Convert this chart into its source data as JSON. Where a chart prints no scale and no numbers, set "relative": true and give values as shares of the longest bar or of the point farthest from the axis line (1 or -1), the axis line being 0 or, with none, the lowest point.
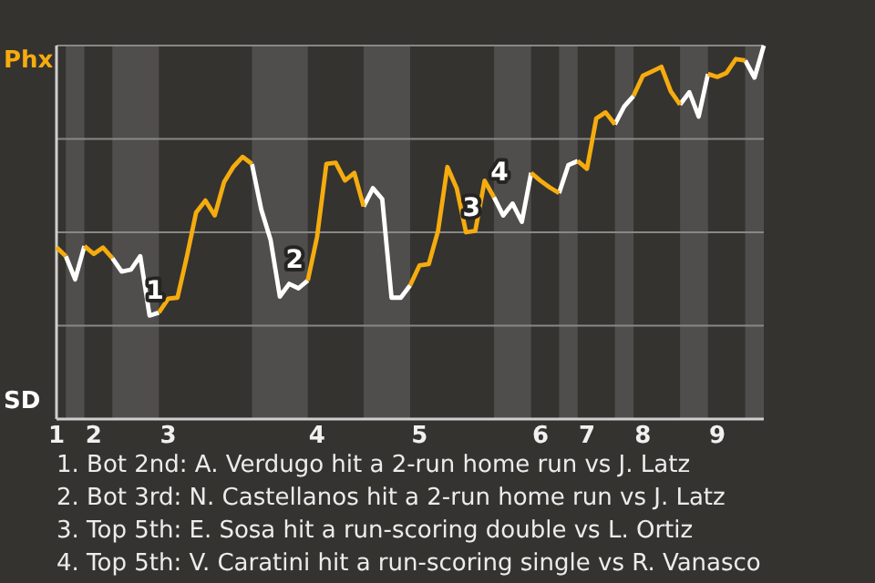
{
  "chart_data": {
    "type": "line",
    "relative": true,
    "categories": [
      "1",
      null,
      null,
      null,
      "2",
      null,
      null,
      null,
      null,
      null,
      null,
      null,
      "3",
      null,
      null,
      null,
      null,
      null,
      null,
      null,
      null,
      null,
      null,
      null,
      null,
      null,
      null,
      null,
      "4",
      null,
      null,
      null,
      null,
      null,
      null,
      null,
      null,
      null,
      null,
      "5",
      null,
      null,
      null,
      null,
      null,
      null,
      null,
      null,
      null,
      null,
      null,
      null,
      "6",
      null,
      null,
      null,
      null,
      "7",
      null,
      null,
      null,
      null,
      null,
      "8",
      null,
      null,
      null,
      null,
      null,
      null,
      null,
      "9",
      null,
      null,
      null,
      null,
      null
    ],
    "grid": "y",
    "line_style": "solid",
    "series": [
      {
        "name": "Phx",
        "color": "#f5ac0f",
        "values": [
          0.46,
          0.436,
          null,
          0.463,
          0.442,
          0.459,
          0.431,
          null,
          null,
          null,
          null,
          0.285,
          0.322,
          0.325,
          0.434,
          0.553,
          0.585,
          0.545,
          0.634,
          0.675,
          0.702,
          0.683,
          null,
          null,
          null,
          null,
          null,
          0.371,
          0.488,
          0.683,
          0.686,
          0.639,
          0.659,
          0.569,
          null,
          null,
          null,
          null,
          0.358,
          0.411,
          0.415,
          0.504,
          0.675,
          0.618,
          0.5,
          0.504,
          0.638,
          0.594,
          null,
          null,
          null,
          0.659,
          0.638,
          0.62,
          0.605,
          null,
          0.691,
          0.67,
          0.805,
          0.821,
          0.789,
          null,
          0.865,
          0.919,
          0.931,
          0.943,
          0.878,
          0.842,
          null,
          null,
          0.924,
          0.916,
          0.927,
          0.964,
          0.96,
          null,
          null
        ]
      },
      {
        "name": "SD",
        "color": "#ffffff",
        "values": [
          null,
          0.436,
          0.374,
          0.463,
          null,
          null,
          0.431,
          0.395,
          0.4,
          0.436,
          0.277,
          0.285,
          null,
          null,
          null,
          null,
          null,
          null,
          null,
          null,
          null,
          0.683,
          0.561,
          0.48,
          0.328,
          0.362,
          0.35,
          0.371,
          null,
          null,
          null,
          null,
          null,
          0.569,
          0.618,
          0.589,
          0.325,
          0.325,
          0.358,
          null,
          null,
          null,
          null,
          null,
          null,
          null,
          null,
          0.594,
          0.545,
          0.577,
          0.528,
          0.659,
          null,
          null,
          0.605,
          0.68,
          0.691,
          null,
          null,
          null,
          0.789,
          0.837,
          0.865,
          null,
          null,
          null,
          null,
          0.842,
          0.875,
          0.81,
          0.924,
          null,
          null,
          null,
          0.96,
          0.914,
          1.0
        ]
      }
    ],
    "annotations": [
      {
        "text": "1",
        "y": 0.277
      },
      {
        "text": "2",
        "y": 0.362
      },
      {
        "text": "3",
        "y": 0.5
      },
      {
        "text": "4",
        "y": 0.594
      },
      "1. Bot 2nd: A. Verdugo hit a 2-run home run vs J. Latz",
      "2. Bot 3rd: N. Castellanos hit a 2-run home run vs J. Latz",
      "3. Top 5th: E. Sosa hit a run-scoring double vs L. Ortiz",
      "4. Top 5th: V. Caratini hit a run-scoring single vs R. Vanasco"
    ]
  }
}
